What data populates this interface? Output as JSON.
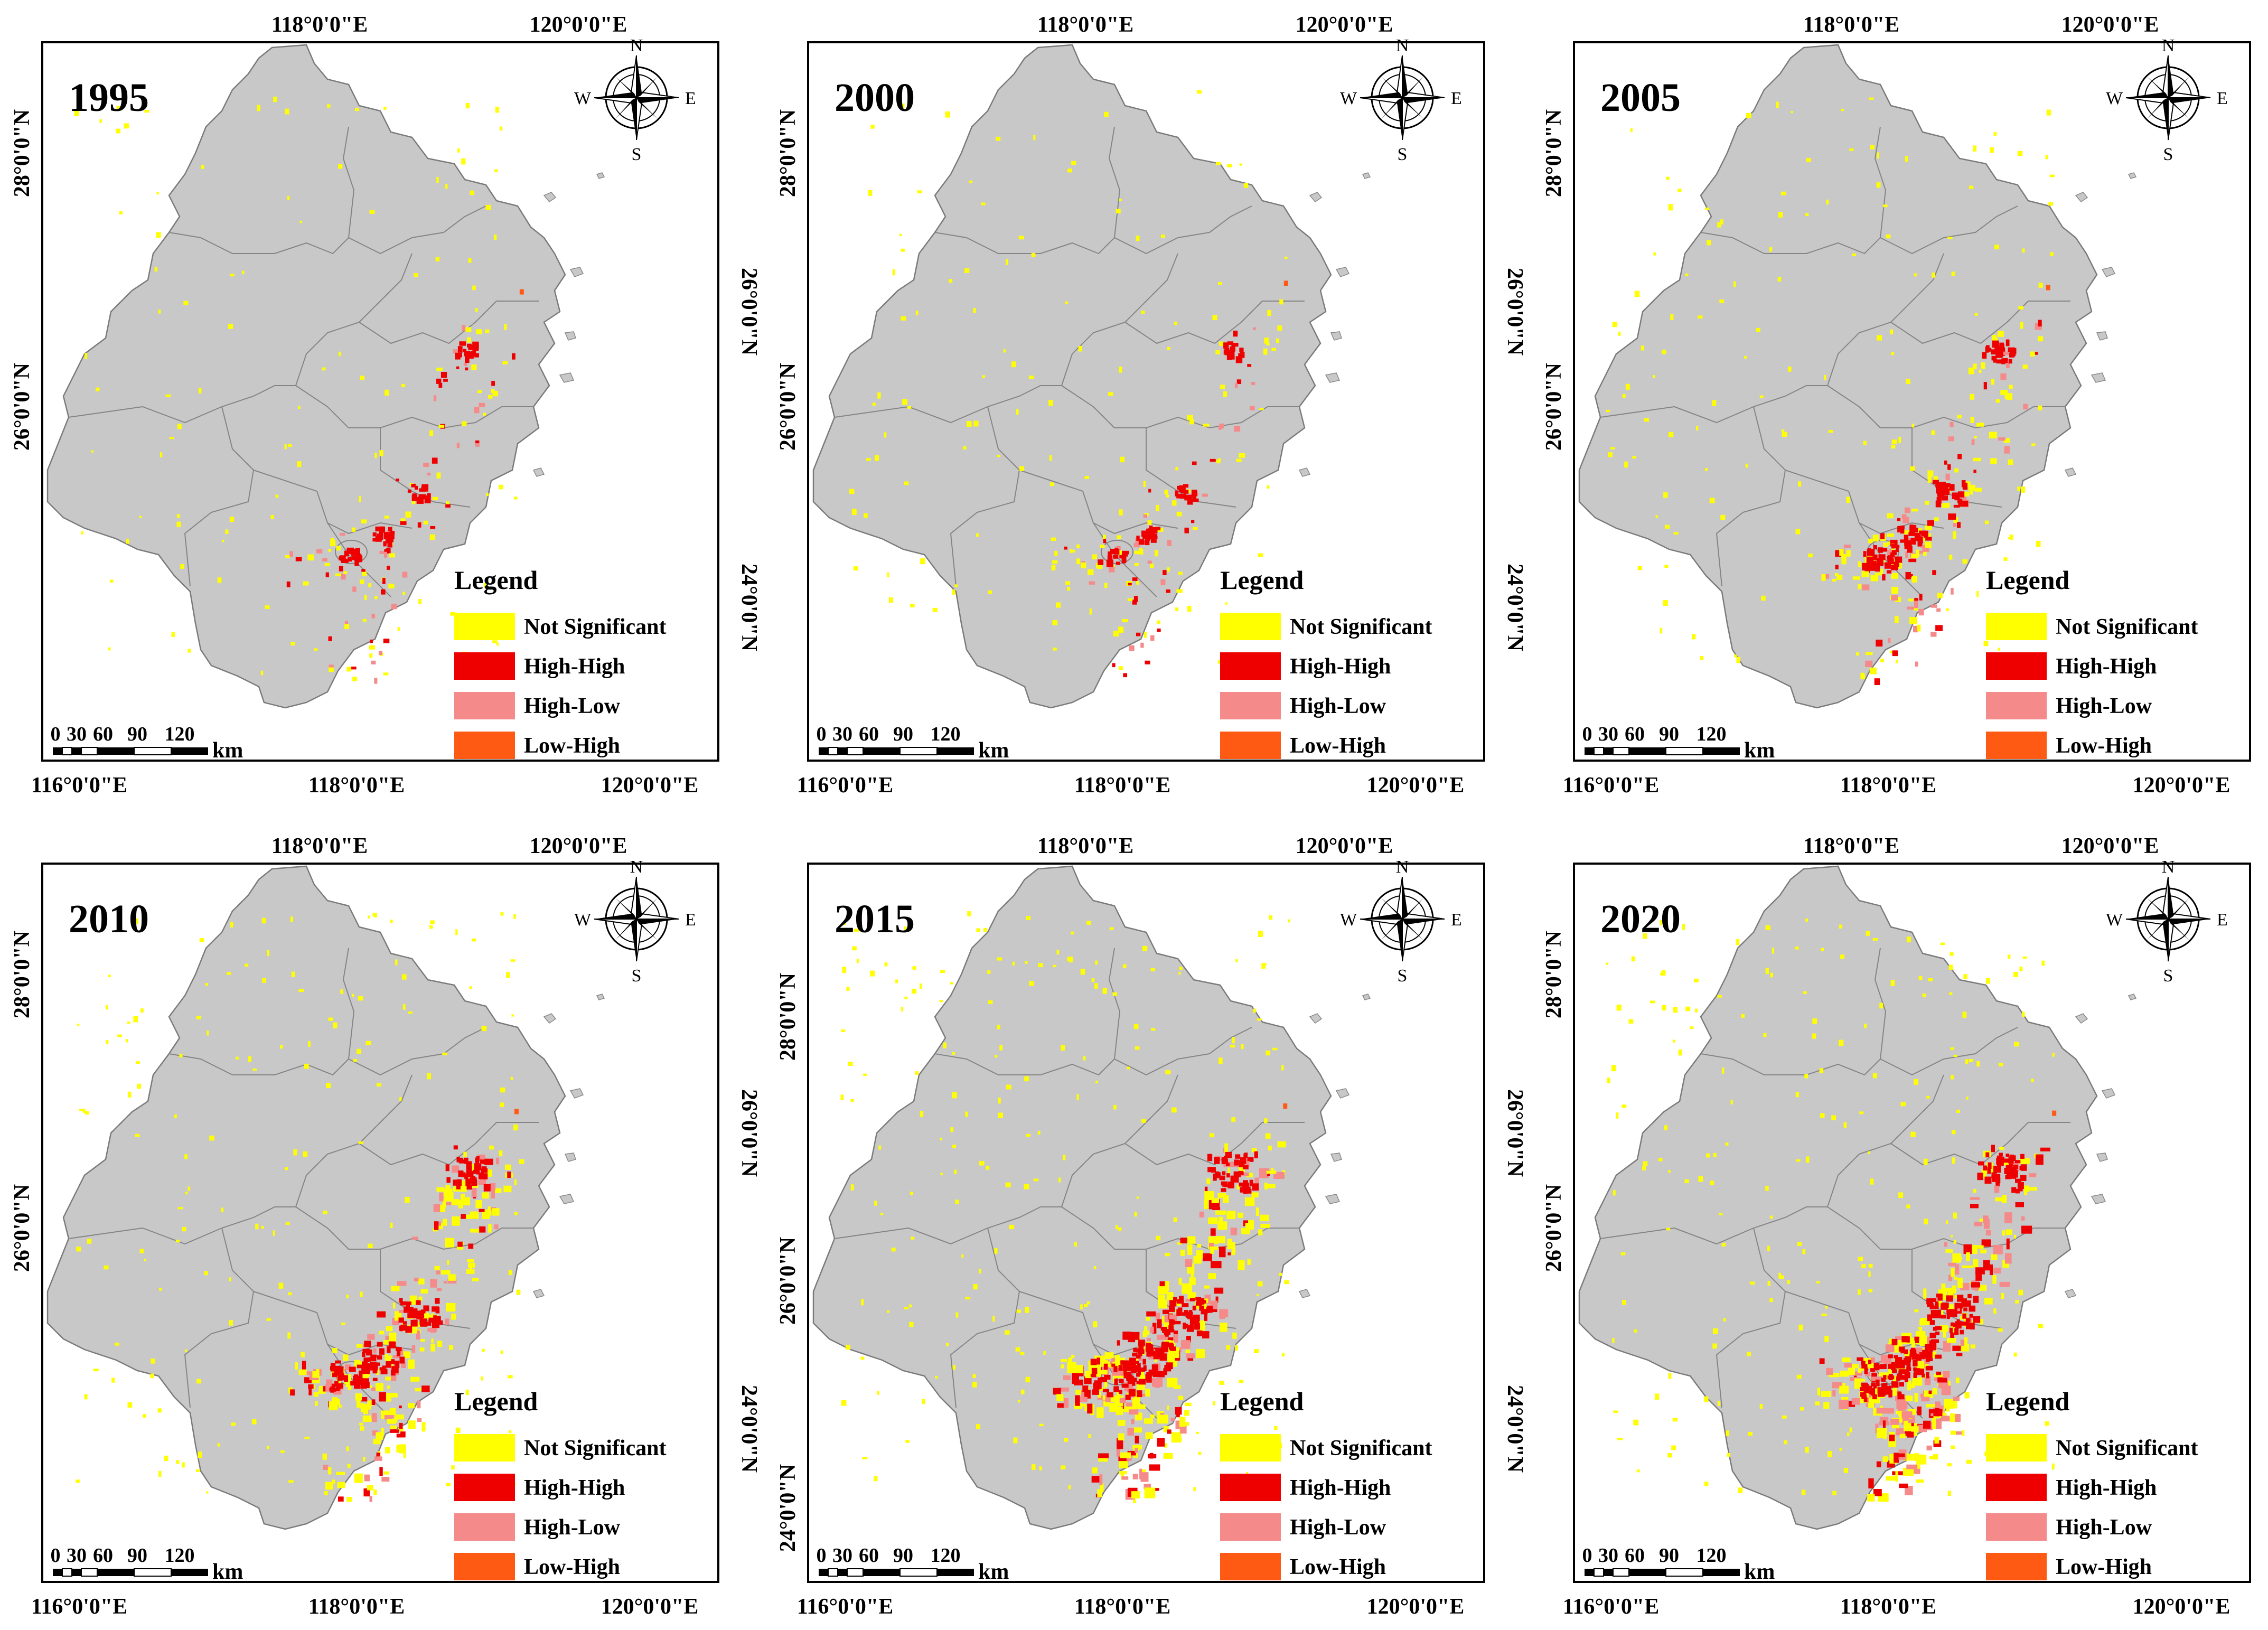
{
  "colors": {
    "not_significant": "#ffff00",
    "high_high": "#ee0000",
    "high_low": "#f48a8a",
    "low_high": "#ff5a14",
    "land": "#c8c8c8",
    "boundary": "#7a7a7a"
  },
  "axes": {
    "top": [
      "118°0'0\"E",
      "120°0'0\"E"
    ],
    "bottom": [
      "116°0'0\"E",
      "118°0'0\"E",
      "120°0'0\"E"
    ],
    "left": [
      "28°0'0\"N",
      "26°0'0\"N"
    ],
    "right": [
      "26°0'0\"N",
      "24°0'0\"N"
    ],
    "left_2015": [
      "28°0'0\"N",
      "26°0'0\"N",
      "24°0'0\"N"
    ]
  },
  "compass": {
    "n": "N",
    "s": "S",
    "e": "E",
    "w": "W"
  },
  "scale_bar": {
    "ticks": [
      "0",
      "30",
      "60",
      "90",
      "120"
    ],
    "unit": "km"
  },
  "legend": {
    "title": "Legend",
    "items": [
      {
        "label": "Not Significant",
        "color_key": "not_significant"
      },
      {
        "label": "High-High",
        "color_key": "high_high"
      },
      {
        "label": "High-Low",
        "color_key": "high_low"
      },
      {
        "label": "Low-High",
        "color_key": "low_high"
      }
    ]
  },
  "maps": [
    {
      "year": "1995",
      "intensity": 1
    },
    {
      "year": "2000",
      "intensity": 1
    },
    {
      "year": "2005",
      "intensity": 2
    },
    {
      "year": "2010",
      "intensity": 3
    },
    {
      "year": "2015",
      "intensity": 4
    },
    {
      "year": "2020",
      "intensity": 4
    }
  ]
}
